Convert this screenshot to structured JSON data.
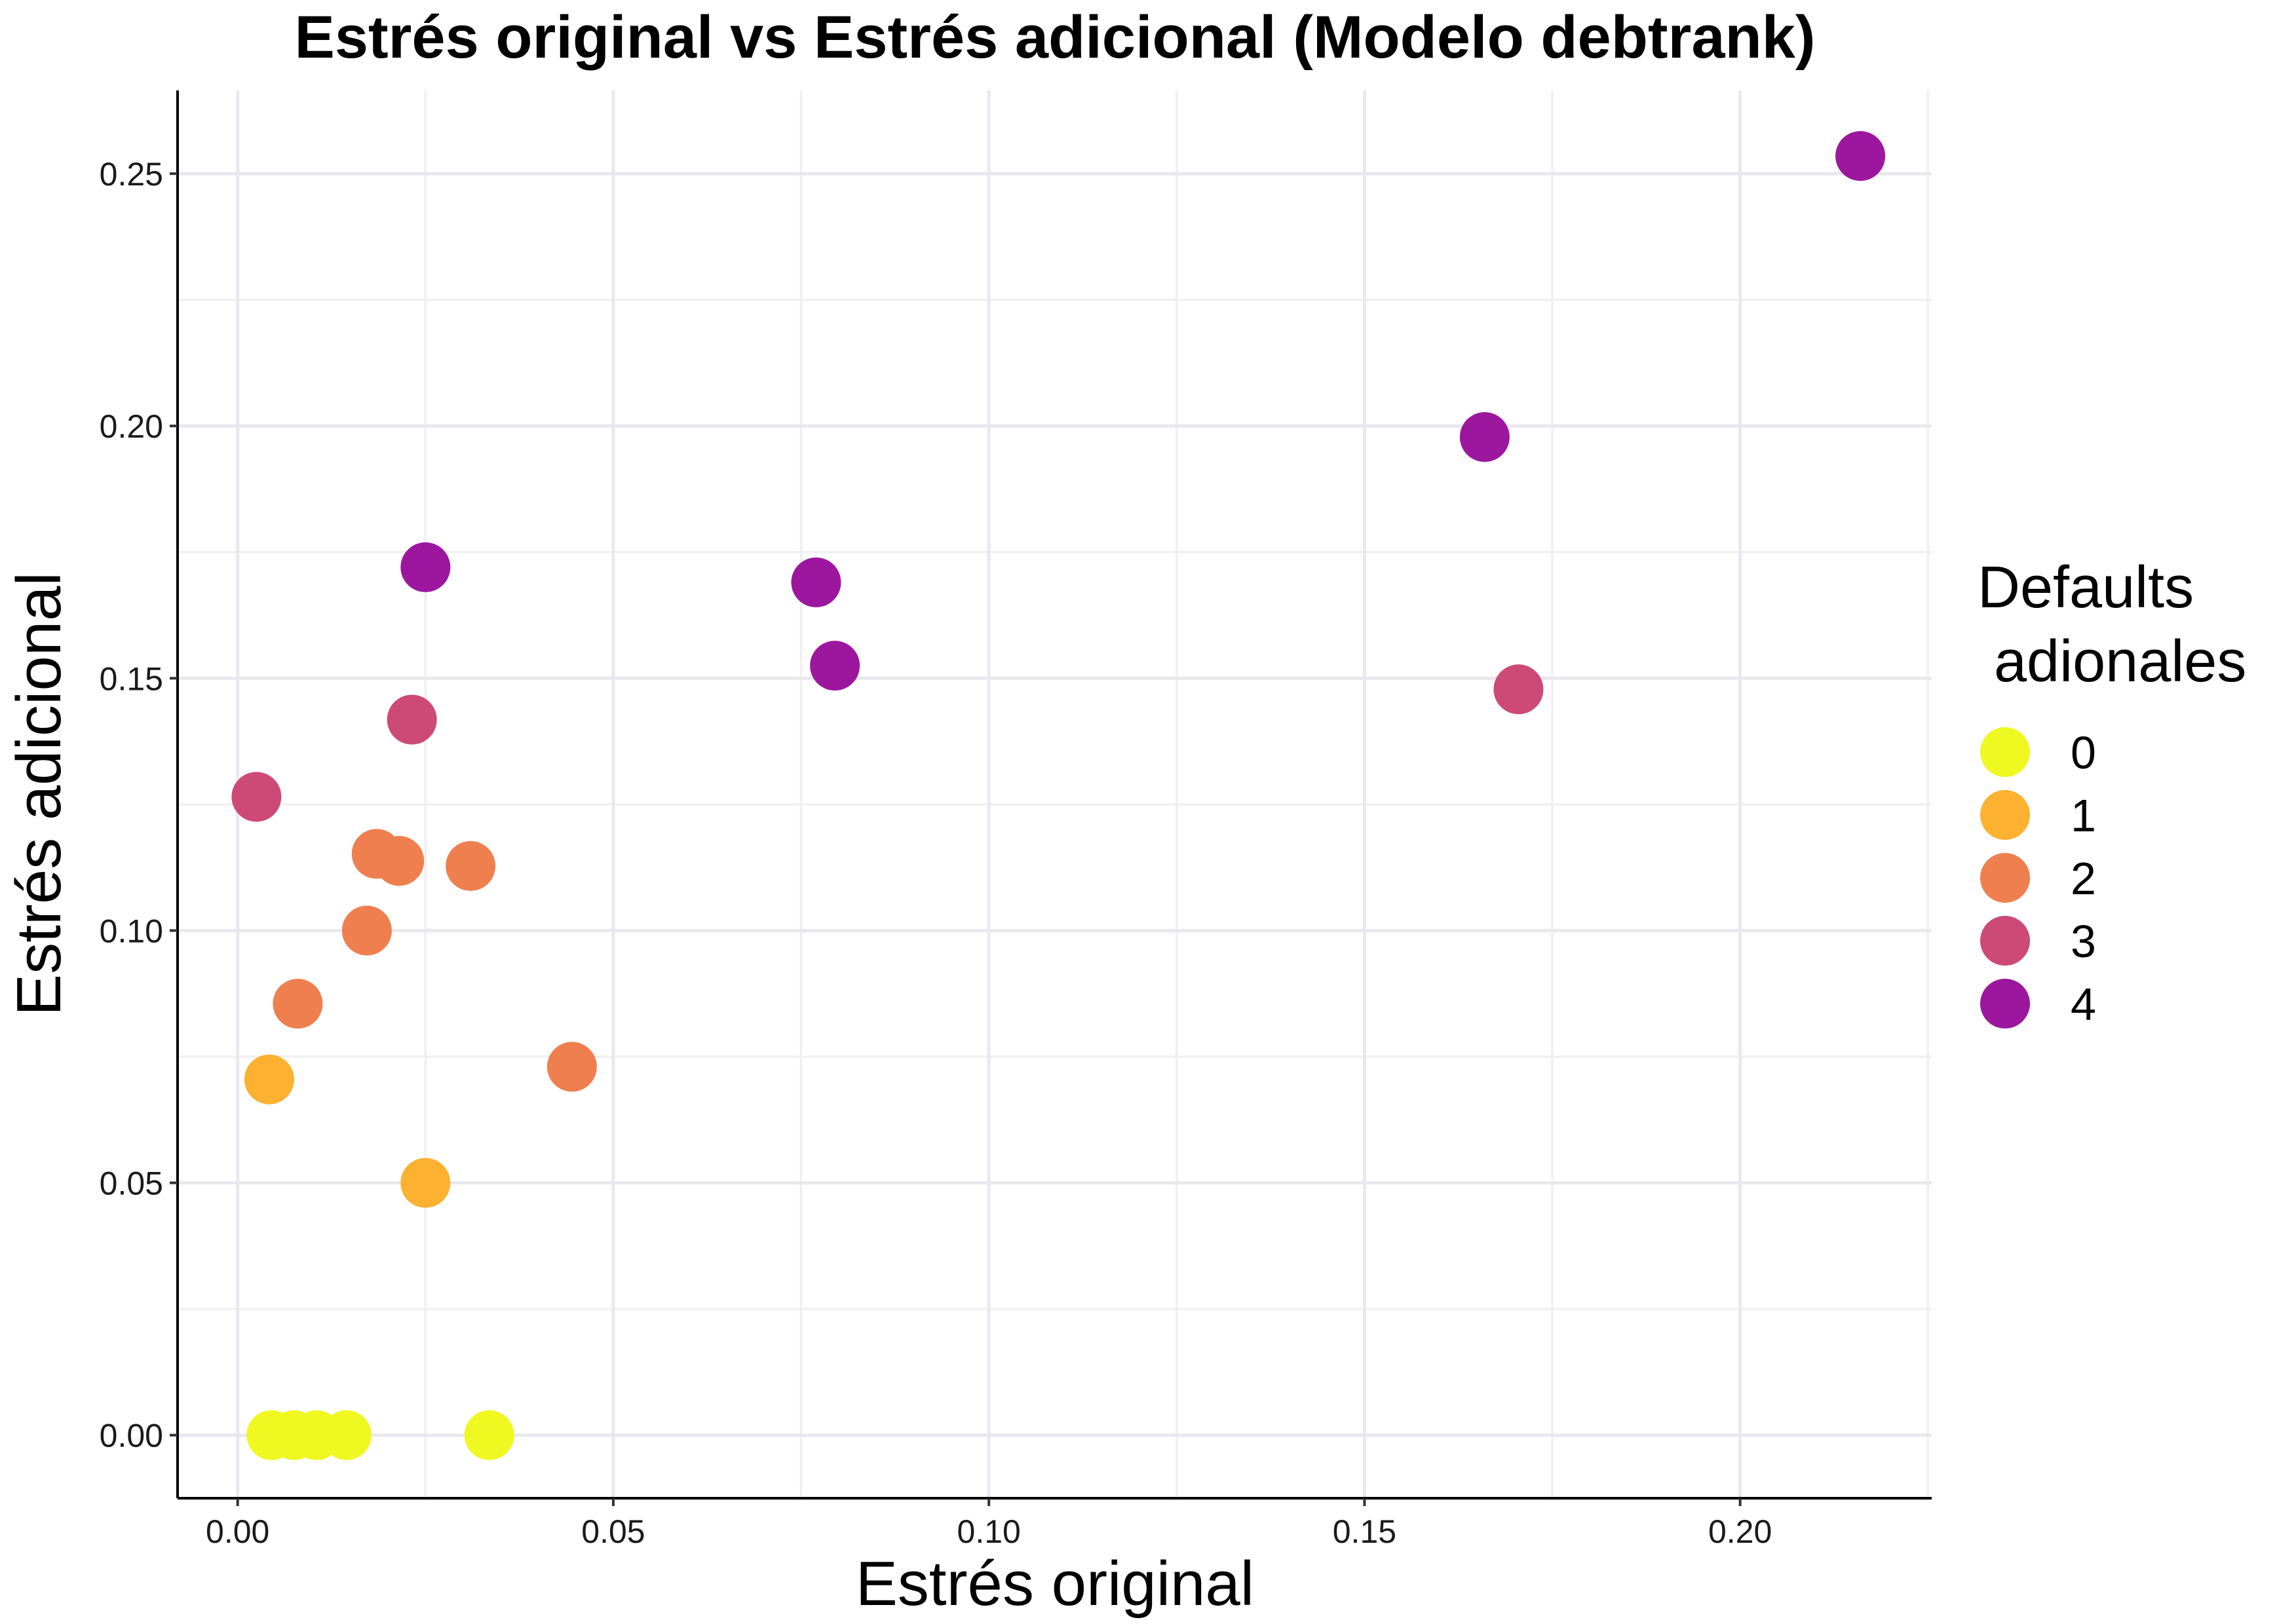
{
  "chart_data": {
    "type": "scatter",
    "title": "Estrés original vs Estrés adicional (Modelo debtrank)",
    "xlabel": "Estrés original",
    "ylabel": "Estrés adicional",
    "xlim": [
      -0.008,
      0.2255
    ],
    "ylim": [
      -0.0125,
      0.2665
    ],
    "x_ticks": [
      0.0,
      0.05,
      0.1,
      0.15,
      0.2
    ],
    "x_tick_labels": [
      "0.00",
      "0.05",
      "0.10",
      "0.15",
      "0.20"
    ],
    "y_ticks": [
      0.0,
      0.05,
      0.1,
      0.15,
      0.2,
      0.25
    ],
    "y_tick_labels": [
      "0.00",
      "0.05",
      "0.10",
      "0.15",
      "0.20",
      "0.25"
    ],
    "grid": true,
    "legend": {
      "title_lines": [
        "Defaults",
        " adionales"
      ],
      "position": "right",
      "entries": [
        {
          "label": "0",
          "color": "#eff821"
        },
        {
          "label": "1",
          "color": "#fcb130"
        },
        {
          "label": "2",
          "color": "#ef7f4f"
        },
        {
          "label": "3",
          "color": "#cd4a76"
        },
        {
          "label": "4",
          "color": "#9c179e"
        }
      ]
    },
    "points": [
      {
        "x": 0.0045,
        "y": 0.0,
        "group": 0
      },
      {
        "x": 0.0075,
        "y": 0.0,
        "group": 0
      },
      {
        "x": 0.0105,
        "y": 0.0,
        "group": 0
      },
      {
        "x": 0.0145,
        "y": 0.0,
        "group": 0
      },
      {
        "x": 0.0335,
        "y": 0.0,
        "group": 0
      },
      {
        "x": 0.0042,
        "y": 0.0705,
        "group": 1
      },
      {
        "x": 0.025,
        "y": 0.05,
        "group": 1
      },
      {
        "x": 0.008,
        "y": 0.0855,
        "group": 2
      },
      {
        "x": 0.0172,
        "y": 0.1,
        "group": 2
      },
      {
        "x": 0.0185,
        "y": 0.1152,
        "group": 2
      },
      {
        "x": 0.0215,
        "y": 0.1138,
        "group": 2
      },
      {
        "x": 0.031,
        "y": 0.1128,
        "group": 2
      },
      {
        "x": 0.0445,
        "y": 0.073,
        "group": 2
      },
      {
        "x": 0.0025,
        "y": 0.1265,
        "group": 3
      },
      {
        "x": 0.0232,
        "y": 0.1418,
        "group": 3
      },
      {
        "x": 0.1705,
        "y": 0.1478,
        "group": 3
      },
      {
        "x": 0.025,
        "y": 0.172,
        "group": 4
      },
      {
        "x": 0.077,
        "y": 0.169,
        "group": 4
      },
      {
        "x": 0.0795,
        "y": 0.1525,
        "group": 4
      },
      {
        "x": 0.166,
        "y": 0.1978,
        "group": 4
      },
      {
        "x": 0.216,
        "y": 0.2535,
        "group": 4
      }
    ]
  }
}
